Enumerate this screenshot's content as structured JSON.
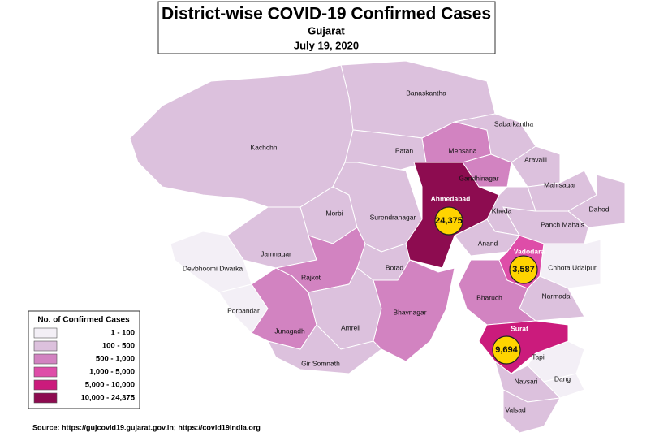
{
  "header": {
    "title": "District-wise COVID-19 Confirmed Cases",
    "subtitle": "Gujarat",
    "date": "July 19, 2020"
  },
  "legend": {
    "title": "No. of Confirmed Cases",
    "items": [
      {
        "label": "1 - 100",
        "color": "#f3eff6"
      },
      {
        "label": "100 - 500",
        "color": "#dcc1dd"
      },
      {
        "label": "500 - 1,000",
        "color": "#d283c1"
      },
      {
        "label": "1,000 - 5,000",
        "color": "#de4da8"
      },
      {
        "label": "5,000 - 10,000",
        "color": "#cb1b7c"
      },
      {
        "label": "10,000 - 24,375",
        "color": "#8d0c50"
      }
    ]
  },
  "districts": [
    {
      "name": "Kachchh",
      "level": 1
    },
    {
      "name": "Banaskantha",
      "level": 1
    },
    {
      "name": "Patan",
      "level": 1
    },
    {
      "name": "Mehsana",
      "level": 2
    },
    {
      "name": "Sabarkantha",
      "level": 1
    },
    {
      "name": "Aravalli",
      "level": 1
    },
    {
      "name": "Gandhinagar",
      "level": 2
    },
    {
      "name": "Mahisagar",
      "level": 1
    },
    {
      "name": "Dahod",
      "level": 1
    },
    {
      "name": "Panch Mahals",
      "level": 1
    },
    {
      "name": "Ahmedabad",
      "level": 5
    },
    {
      "name": "Kheda",
      "level": 1
    },
    {
      "name": "Anand",
      "level": 1
    },
    {
      "name": "Vadodara",
      "level": 3
    },
    {
      "name": "Chhota Udaipur",
      "level": 0
    },
    {
      "name": "Narmada",
      "level": 1
    },
    {
      "name": "Bharuch",
      "level": 2
    },
    {
      "name": "Surat",
      "level": 4
    },
    {
      "name": "Tapi",
      "level": 0
    },
    {
      "name": "Dang",
      "level": 0
    },
    {
      "name": "Navsari",
      "level": 1
    },
    {
      "name": "Valsad",
      "level": 1
    },
    {
      "name": "Morbi",
      "level": 1
    },
    {
      "name": "Surendranagar",
      "level": 1
    },
    {
      "name": "Botad",
      "level": 1
    },
    {
      "name": "Jamnagar",
      "level": 1
    },
    {
      "name": "Devbhoomi Dwarka",
      "level": 0
    },
    {
      "name": "Rajkot",
      "level": 2
    },
    {
      "name": "Porbandar",
      "level": 0
    },
    {
      "name": "Junagadh",
      "level": 2
    },
    {
      "name": "Amreli",
      "level": 1
    },
    {
      "name": "Bhavnagar",
      "level": 2
    },
    {
      "name": "Gir Somnath",
      "level": 1
    }
  ],
  "callouts": [
    "24,375",
    "9,694",
    "3,587"
  ],
  "source": "Source: https://gujcovid19.gujarat.gov.in;  https://covid19india.org"
}
